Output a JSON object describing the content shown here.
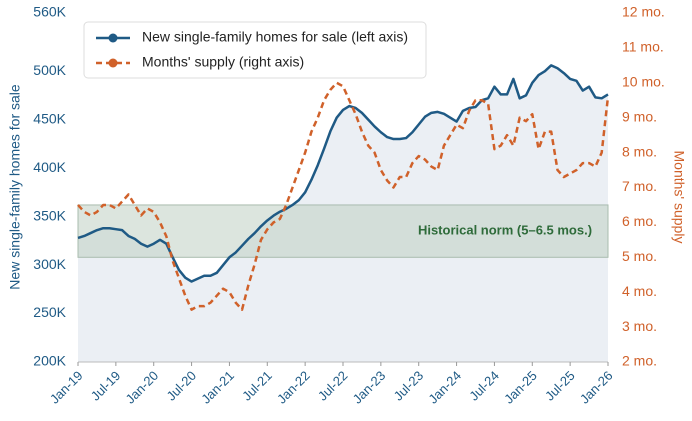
{
  "chart_data": {
    "type": "line",
    "axis_labels": {
      "y": "New single-family homes for sale",
      "y2": "Months' supply"
    },
    "categories": [
      "Jan-19",
      null,
      null,
      null,
      null,
      null,
      "Jul-19",
      null,
      null,
      null,
      null,
      null,
      "Jan-20",
      null,
      null,
      null,
      null,
      null,
      "Jul-20",
      null,
      null,
      null,
      null,
      null,
      "Jan-21",
      null,
      null,
      null,
      null,
      null,
      "Jul-21",
      null,
      null,
      null,
      null,
      null,
      "Jan-22",
      null,
      null,
      null,
      null,
      null,
      "Jul-22",
      null,
      null,
      null,
      null,
      null,
      "Jan-23",
      null,
      null,
      null,
      null,
      null,
      "Jul-23",
      null,
      null,
      null,
      null,
      null,
      "Jan-24",
      null,
      null,
      null,
      null,
      null,
      "Jul-24",
      null,
      null,
      null,
      null,
      null,
      "Jan-25",
      null,
      null,
      null,
      null,
      null,
      "Jul-25",
      null,
      null,
      null,
      null,
      null,
      "Jan-26"
    ],
    "series": [
      {
        "name": "New single-family homes for sale (left axis)",
        "color": "#1f5a85",
        "axis": "y",
        "style": "solid",
        "area": true,
        "values": [
          328,
          330,
          333,
          336,
          338,
          338,
          337,
          336,
          330,
          327,
          322,
          319,
          322,
          326,
          322,
          308,
          295,
          287,
          283,
          286,
          289,
          289,
          292,
          300,
          308,
          313,
          320,
          327,
          333,
          340,
          346,
          351,
          355,
          358,
          362,
          367,
          375,
          388,
          403,
          420,
          438,
          452,
          460,
          464,
          462,
          457,
          450,
          443,
          437,
          432,
          430,
          430,
          431,
          437,
          445,
          453,
          457,
          458,
          456,
          452,
          448,
          459,
          462,
          463,
          470,
          472,
          484,
          476,
          476,
          492,
          472,
          475,
          488,
          496,
          500,
          506,
          503,
          498,
          492,
          490,
          480,
          484,
          473,
          472,
          476
        ]
      },
      {
        "name": "Months' supply (right axis)",
        "color": "#d0612a",
        "axis": "y2",
        "style": "dashed",
        "area": false,
        "values": [
          6.5,
          6.3,
          6.2,
          6.3,
          6.5,
          6.5,
          6.4,
          6.6,
          6.8,
          6.5,
          6.2,
          6.4,
          6.3,
          6.0,
          5.6,
          4.9,
          4.4,
          3.9,
          3.5,
          3.6,
          3.6,
          3.7,
          3.9,
          4.1,
          4.0,
          3.7,
          3.5,
          4.2,
          4.8,
          5.5,
          5.8,
          6.0,
          6.1,
          6.5,
          7.0,
          7.5,
          8.0,
          8.6,
          9.0,
          9.5,
          9.8,
          10.0,
          9.9,
          9.5,
          9.1,
          8.6,
          8.2,
          8.0,
          7.5,
          7.2,
          7.0,
          7.3,
          7.3,
          7.7,
          7.9,
          7.8,
          7.6,
          7.5,
          8.2,
          8.5,
          8.8,
          8.7,
          9.2,
          9.5,
          9.5,
          9.4,
          8.1,
          8.2,
          8.5,
          8.2,
          9.0,
          8.9,
          9.1,
          8.1,
          8.6,
          8.6,
          7.5,
          7.3,
          7.4,
          7.5,
          7.7,
          7.7,
          7.6,
          8.0,
          9.6
        ]
      }
    ],
    "ylim": [
      200,
      560
    ],
    "yticks": [
      {
        "value": 200,
        "label": "200K"
      },
      {
        "value": 250,
        "label": "250K"
      },
      {
        "value": 300,
        "label": "300K"
      },
      {
        "value": 350,
        "label": "350K"
      },
      {
        "value": 400,
        "label": "400K"
      },
      {
        "value": 450,
        "label": "450K"
      },
      {
        "value": 500,
        "label": "500K"
      },
      {
        "value": 560,
        "label": "560K"
      }
    ],
    "y2lim": [
      2,
      12
    ],
    "y2ticks": [
      {
        "value": 2,
        "label": "2 mo."
      },
      {
        "value": 3,
        "label": "3 mo."
      },
      {
        "value": 4,
        "label": "4 mo."
      },
      {
        "value": 5,
        "label": "5 mo."
      },
      {
        "value": 6,
        "label": "6 mo."
      },
      {
        "value": 7,
        "label": "7 mo."
      },
      {
        "value": 8,
        "label": "8 mo."
      },
      {
        "value": 9,
        "label": "9 mo."
      },
      {
        "value": 10,
        "label": "10 mo."
      },
      {
        "value": 11,
        "label": "11 mo."
      },
      {
        "value": 12,
        "label": "12 mo."
      }
    ],
    "norm_band": {
      "label": "Historical norm (5–6.5 mos.)",
      "axis": "y2",
      "range": [
        5,
        6.5
      ]
    },
    "grid": false,
    "legend": "top-left"
  }
}
